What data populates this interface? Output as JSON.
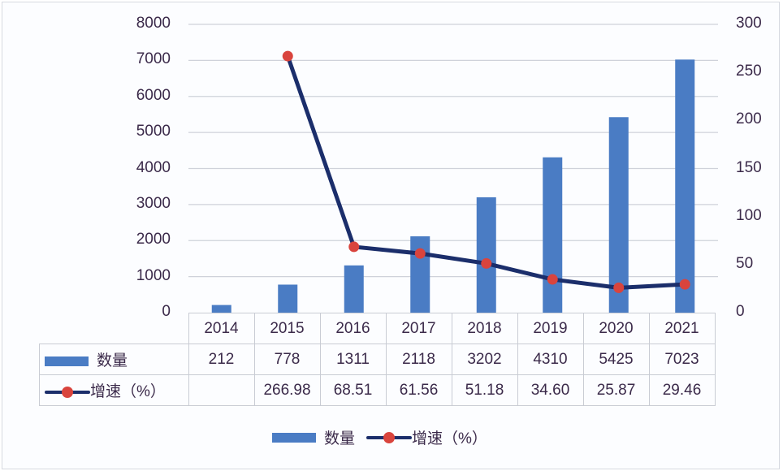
{
  "chart_data": {
    "type": "bar+line",
    "title": "",
    "categories": [
      "2014",
      "2015",
      "2016",
      "2017",
      "2018",
      "2019",
      "2020",
      "2021"
    ],
    "series": [
      {
        "name": "数量",
        "type": "bar",
        "axis": "left",
        "color": "#4a7cc4",
        "values": [
          212,
          778,
          1311,
          2118,
          3202,
          4310,
          5425,
          7023
        ]
      },
      {
        "name": "增速（%）",
        "type": "line",
        "axis": "right",
        "line_color": "#1b2e6b",
        "marker_color": "#d9443d",
        "values": [
          null,
          266.98,
          68.51,
          61.56,
          51.18,
          34.6,
          25.87,
          29.46
        ]
      }
    ],
    "left_axis": {
      "ylim": [
        0,
        8000
      ],
      "ticks": [
        "0",
        "1000",
        "2000",
        "3000",
        "4000",
        "5000",
        "6000",
        "7000",
        "8000"
      ]
    },
    "right_axis": {
      "ylim": [
        0,
        300
      ],
      "ticks": [
        "0",
        "50",
        "100",
        "150",
        "200",
        "250",
        "300"
      ]
    },
    "grid": true,
    "data_table": true,
    "legend_position": "bottom"
  },
  "table": {
    "row_labels": [
      "数量",
      "增速（%）"
    ],
    "years": [
      "2014",
      "2015",
      "2016",
      "2017",
      "2018",
      "2019",
      "2020",
      "2021"
    ],
    "count_row": [
      "212",
      "778",
      "1311",
      "2118",
      "3202",
      "4310",
      "5425",
      "7023"
    ],
    "growth_row": [
      "",
      "266.98",
      "68.51",
      "61.56",
      "51.18",
      "34.60",
      "25.87",
      "29.46"
    ]
  },
  "legend": {
    "bar_label": "数量",
    "line_label": "增速（%）"
  }
}
